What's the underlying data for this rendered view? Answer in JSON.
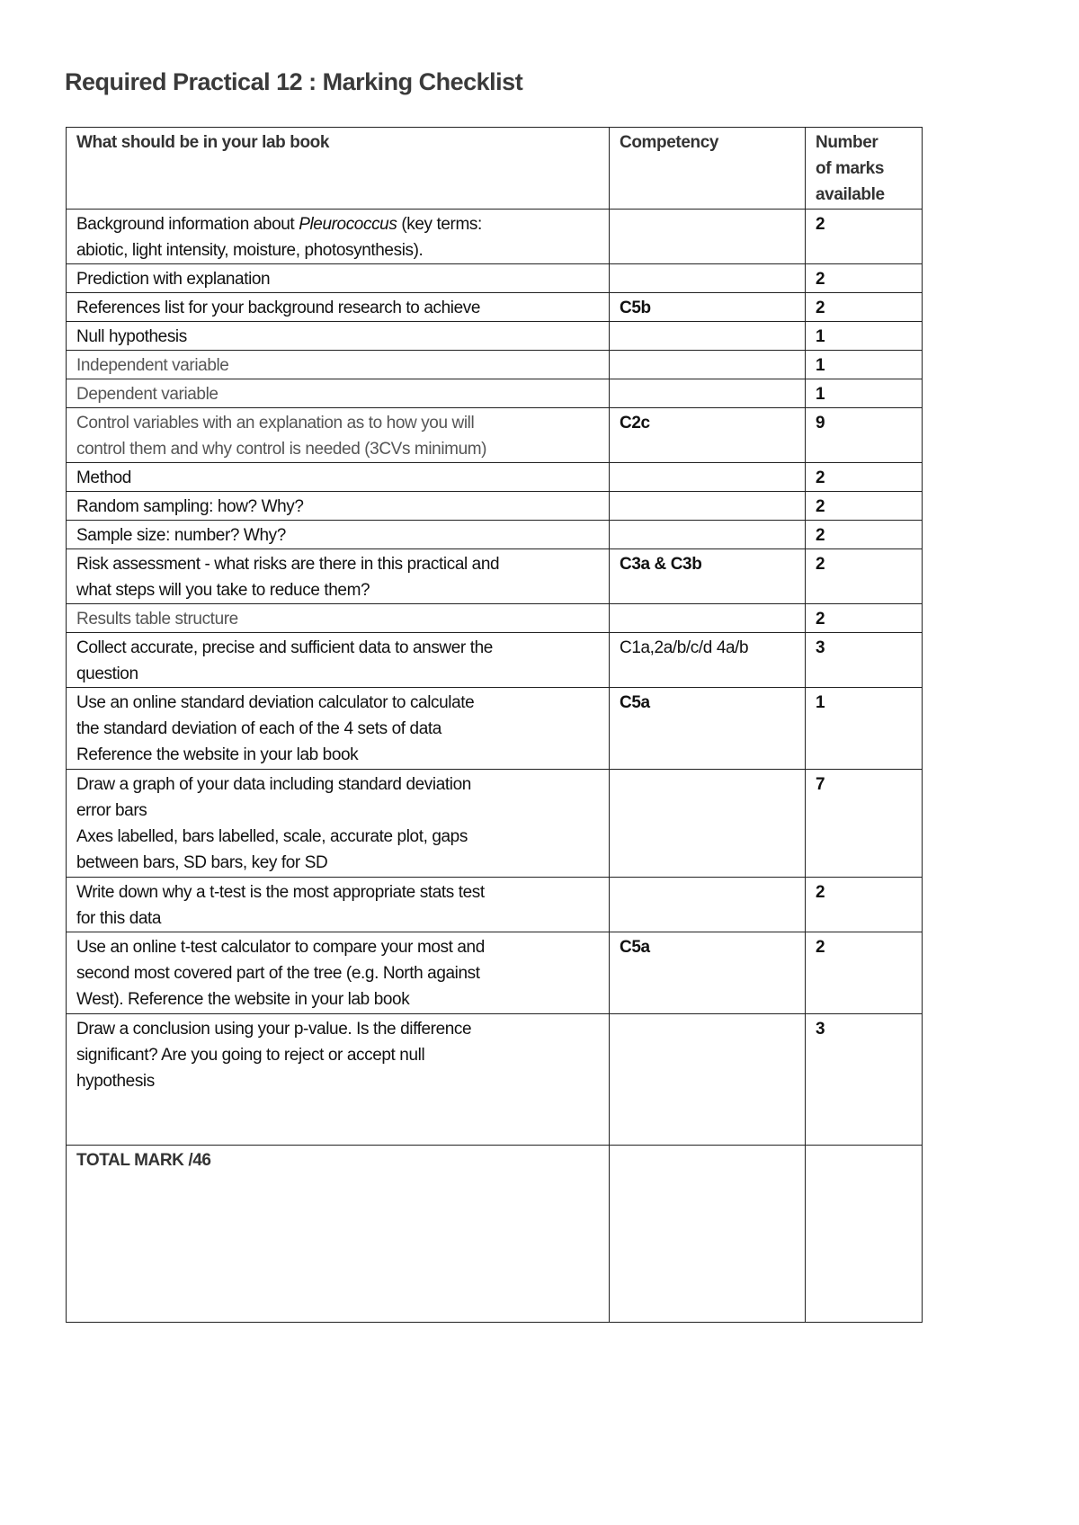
{
  "title": "Required Practical 12 : Marking Checklist",
  "table": {
    "headers": [
      "What should be in your lab book",
      "Competency",
      "Number of marks available"
    ],
    "header_lines_marks": [
      "Number",
      "of marks",
      "available"
    ],
    "rows": [
      {
        "lines": [
          "Background information about |Pleurococcus| (key terms:",
          "abiotic, light intensity, moisture, photosynthesis)."
        ],
        "competency": "",
        "marks": "2",
        "grey": false
      },
      {
        "lines": [
          "Prediction with explanation"
        ],
        "competency": "",
        "marks": "2",
        "grey": false
      },
      {
        "lines": [
          "References list for your background research to achieve"
        ],
        "competency": "C5b",
        "marks": "2",
        "grey": false
      },
      {
        "lines": [
          "Null hypothesis"
        ],
        "competency": "",
        "marks": "1",
        "grey": false
      },
      {
        "lines": [
          "Independent variable"
        ],
        "competency": "",
        "marks": "1",
        "grey": true
      },
      {
        "lines": [
          "Dependent variable"
        ],
        "competency": "",
        "marks": "1",
        "grey": true
      },
      {
        "lines": [
          "Control variables with an explanation as to how you will",
          "control them and why control is needed (3CVs minimum)"
        ],
        "competency": "C2c",
        "marks": "9",
        "grey": true
      },
      {
        "lines": [
          "Method"
        ],
        "competency": "",
        "marks": "2",
        "grey": false
      },
      {
        "lines": [
          "Random sampling: how? Why?"
        ],
        "competency": "",
        "marks": "2",
        "grey": false
      },
      {
        "lines": [
          "Sample size: number? Why?"
        ],
        "competency": "",
        "marks": "2",
        "grey": false
      },
      {
        "lines": [
          "Risk assessment - what risks are there in this practical and",
          "what steps will you take to reduce them?"
        ],
        "competency": "C3a & C3b",
        "marks": "2",
        "grey": false
      },
      {
        "lines": [
          "Results table structure"
        ],
        "competency": "",
        "marks": "2",
        "grey": true
      },
      {
        "lines": [
          "Collect accurate, precise and sufficient data to answer the",
          "question"
        ],
        "competency": "C1a,2a/b/c/d 4a/b",
        "marks": "3",
        "grey": false
      },
      {
        "lines": [
          "Use an online standard deviation calculator to calculate",
          "the standard deviation of each of the 4 sets of data",
          "Reference the website in your lab book"
        ],
        "competency": "C5a",
        "marks": "1",
        "grey": false
      },
      {
        "lines": [
          "Draw a graph of your data including standard deviation",
          "error bars",
          "Axes labelled, bars labelled, scale, accurate plot, gaps",
          "between bars, SD bars, key for SD"
        ],
        "competency": "",
        "marks": "7",
        "grey": false
      },
      {
        "lines": [
          "Write down why a t-test is the most appropriate stats test",
          "for this data"
        ],
        "competency": "",
        "marks": "2",
        "grey": false
      },
      {
        "lines": [
          "Use an online t-test calculator to compare your most and",
          "second most covered part of the tree (e.g. North against",
          "West). Reference the website in your lab book"
        ],
        "competency": "C5a",
        "marks": "2",
        "grey": false
      },
      {
        "lines": [
          "Draw a conclusion using your p-value. Is the difference",
          "significant? Are you going to reject or accept null",
          "hypothesis"
        ],
        "competency": "",
        "marks": "3",
        "grey": false
      }
    ],
    "total_label": "TOTAL MARK /46"
  }
}
